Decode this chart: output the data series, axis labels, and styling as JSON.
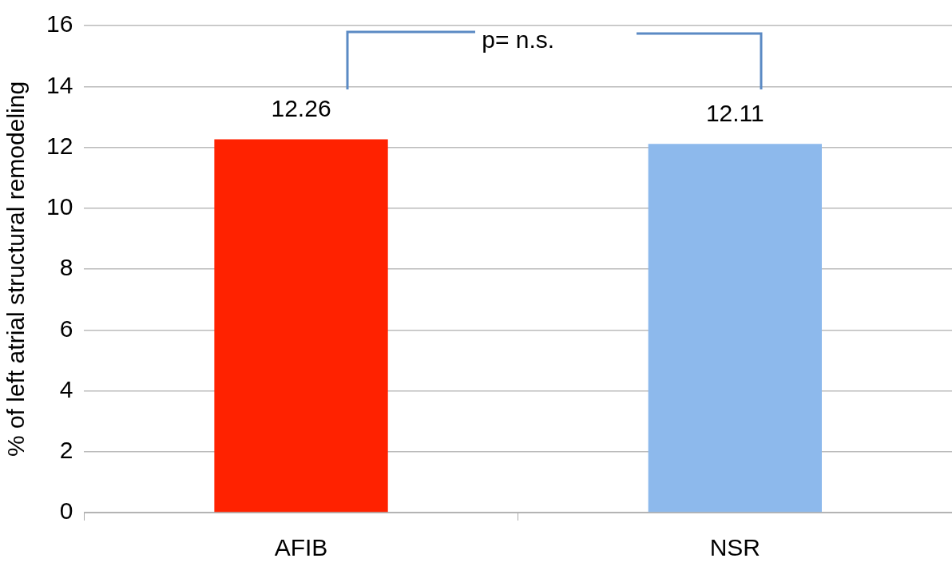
{
  "chart_data": {
    "type": "bar",
    "ylabel": "% of left atrial structural remodeling",
    "categories": [
      "AFIB",
      "NSR"
    ],
    "values": [
      12.26,
      12.11
    ],
    "colors": [
      "#ff2200",
      "#8db9ec"
    ],
    "ylim": [
      0,
      16
    ],
    "yticks": [
      0,
      2,
      4,
      6,
      8,
      10,
      12,
      14,
      16
    ],
    "grid": "y",
    "data_labels": true,
    "annotations": [
      "p= n.s."
    ]
  }
}
